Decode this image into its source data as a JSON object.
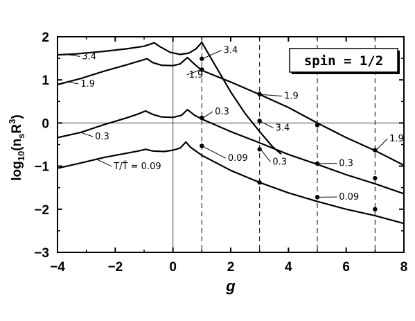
{
  "chart_data": {
    "type": "line",
    "xlabel": "g",
    "ylabel_parts": {
      "base": "log",
      "sub1": "10",
      "mid": "(n",
      "sub2": "s",
      "r": "R",
      "sup": "3",
      "close": ")"
    },
    "xlim": [
      -4,
      8
    ],
    "ylim": [
      -3,
      2
    ],
    "x_ticks": [
      -4,
      -2,
      0,
      2,
      4,
      6,
      8
    ],
    "y_ticks": [
      -3,
      -2,
      -1,
      0,
      1,
      2
    ],
    "reference_lines": {
      "horizontal_y": 0,
      "vertical_solid_x": 0,
      "vertical_dashed_x": [
        1,
        3,
        5,
        7
      ]
    },
    "legend_box": "spin = 1/2",
    "legend_position": "top-right",
    "series": [
      {
        "name": "3.4",
        "points": [
          [
            -4,
            1.58
          ],
          [
            -3.4,
            1.6
          ],
          [
            -2.4,
            1.66
          ],
          [
            -1.6,
            1.72
          ],
          [
            -1.0,
            1.78
          ],
          [
            -0.65,
            1.86
          ],
          [
            -0.45,
            1.77
          ],
          [
            -0.1,
            1.64
          ],
          [
            0.25,
            1.59
          ],
          [
            0.55,
            1.62
          ],
          [
            0.8,
            1.72
          ],
          [
            1.0,
            1.87
          ],
          [
            1.45,
            1.35
          ],
          [
            2.0,
            0.72
          ],
          [
            2.5,
            0.22
          ],
          [
            3.0,
            -0.2
          ],
          [
            3.45,
            -0.55
          ],
          [
            3.75,
            -0.72
          ]
        ]
      },
      {
        "name": "1.9",
        "points": [
          [
            -4,
            0.89
          ],
          [
            -3.2,
            1.03
          ],
          [
            -2.4,
            1.2
          ],
          [
            -1.6,
            1.35
          ],
          [
            -1.15,
            1.44
          ],
          [
            -0.9,
            1.49
          ],
          [
            -0.7,
            1.4
          ],
          [
            -0.4,
            1.34
          ],
          [
            0.0,
            1.33
          ],
          [
            0.25,
            1.37
          ],
          [
            0.5,
            1.52
          ],
          [
            0.75,
            1.36
          ],
          [
            1.0,
            1.22
          ],
          [
            2.0,
            0.95
          ],
          [
            3.0,
            0.66
          ],
          [
            4.0,
            0.36
          ],
          [
            5.0,
            0.0
          ],
          [
            6.0,
            -0.34
          ],
          [
            7.0,
            -0.64
          ],
          [
            8.0,
            -0.98
          ]
        ]
      },
      {
        "name": "0.3",
        "points": [
          [
            -4,
            -0.34
          ],
          [
            -3.2,
            -0.22
          ],
          [
            -2.4,
            -0.04
          ],
          [
            -1.6,
            0.12
          ],
          [
            -1.2,
            0.21
          ],
          [
            -0.95,
            0.28
          ],
          [
            -0.7,
            0.2
          ],
          [
            -0.4,
            0.14
          ],
          [
            0.0,
            0.13
          ],
          [
            0.3,
            0.18
          ],
          [
            0.5,
            0.31
          ],
          [
            0.75,
            0.18
          ],
          [
            1.0,
            0.09
          ],
          [
            2.0,
            -0.2
          ],
          [
            3.0,
            -0.46
          ],
          [
            4.0,
            -0.73
          ],
          [
            5.0,
            -0.96
          ],
          [
            6.0,
            -1.2
          ],
          [
            7.0,
            -1.41
          ],
          [
            8.0,
            -1.64
          ]
        ]
      },
      {
        "name": "T/T̃ = 0.09",
        "points": [
          [
            -4,
            -1.05
          ],
          [
            -3.2,
            -0.93
          ],
          [
            -2.4,
            -0.8
          ],
          [
            -1.6,
            -0.7
          ],
          [
            -1.2,
            -0.65
          ],
          [
            -0.95,
            -0.61
          ],
          [
            -0.7,
            -0.65
          ],
          [
            -0.3,
            -0.66
          ],
          [
            0.0,
            -0.63
          ],
          [
            0.25,
            -0.58
          ],
          [
            0.45,
            -0.44
          ],
          [
            0.6,
            -0.56
          ],
          [
            1.0,
            -0.75
          ],
          [
            2.0,
            -1.1
          ],
          [
            3.0,
            -1.38
          ],
          [
            4.0,
            -1.62
          ],
          [
            5.0,
            -1.82
          ],
          [
            6.0,
            -2.0
          ],
          [
            7.0,
            -2.15
          ],
          [
            8.0,
            -2.33
          ]
        ]
      }
    ],
    "markers": [
      {
        "label": "3.4",
        "x": 1,
        "y": 1.49
      },
      {
        "label": "1.9",
        "x": 1,
        "y": 1.24
      },
      {
        "label": "1.9",
        "x": 3,
        "y": 0.67
      },
      {
        "label": "1.9",
        "x": 5,
        "y": -0.05
      },
      {
        "label": "1.9",
        "x": 7,
        "y": -0.63
      },
      {
        "label": "0.3",
        "x": 1,
        "y": 0.12
      },
      {
        "label": "3.4",
        "x": 3,
        "y": 0.05
      },
      {
        "label": "0.3",
        "x": 3,
        "y": -0.61
      },
      {
        "label": "0.3",
        "x": 5,
        "y": -0.94
      },
      {
        "label": "0.3",
        "x": 7,
        "y": -1.28
      },
      {
        "label": "0.09",
        "x": 1,
        "y": -0.53
      },
      {
        "label": "0.09",
        "x": 3,
        "y": -1.38
      },
      {
        "label": "0.09",
        "x": 5,
        "y": -1.72
      },
      {
        "label": "0.09",
        "x": 7,
        "y": -2.0
      }
    ],
    "annotations": [
      {
        "text": "3.4",
        "anchor": [
          -3.6,
          1.58
        ],
        "at": [
          -3.15,
          1.48
        ]
      },
      {
        "text": "1.9",
        "anchor": [
          -3.6,
          0.95
        ],
        "at": [
          -3.2,
          0.84
        ]
      },
      {
        "text": "0.3",
        "anchor": [
          -3.2,
          -0.22
        ],
        "at": [
          -2.7,
          -0.38
        ]
      },
      {
        "text": "T/T̃ = 0.09",
        "anchor": [
          -2.65,
          -0.84
        ],
        "at": [
          -2.05,
          -1.07
        ]
      },
      {
        "text": "3.4",
        "anchor": [
          1.05,
          1.5
        ],
        "at": [
          1.75,
          1.62
        ]
      },
      {
        "text": "1.9",
        "anchor": [
          0.98,
          1.24
        ],
        "at": [
          0.55,
          1.05
        ]
      },
      {
        "text": "0.3",
        "anchor": [
          1.05,
          0.12
        ],
        "at": [
          1.45,
          0.2
        ]
      },
      {
        "text": "1.9",
        "anchor": [
          3.05,
          0.66
        ],
        "at": [
          3.85,
          0.56
        ]
      },
      {
        "text": "3.4",
        "anchor": [
          3.05,
          0.03
        ],
        "at": [
          3.55,
          -0.18
        ]
      },
      {
        "text": "0.3",
        "anchor": [
          3.05,
          -0.62
        ],
        "at": [
          3.45,
          -0.97
        ]
      },
      {
        "text": "1.9",
        "anchor": [
          7.05,
          -0.62
        ],
        "at": [
          7.5,
          -0.43
        ]
      },
      {
        "text": "0.09",
        "anchor": [
          1.05,
          -0.55
        ],
        "at": [
          1.9,
          -0.88
        ]
      },
      {
        "text": "0.3",
        "anchor": [
          5.05,
          -0.94
        ],
        "at": [
          5.75,
          -1.0
        ]
      },
      {
        "text": "0.09",
        "anchor": [
          5.05,
          -1.72
        ],
        "at": [
          5.75,
          -1.78
        ]
      }
    ]
  }
}
